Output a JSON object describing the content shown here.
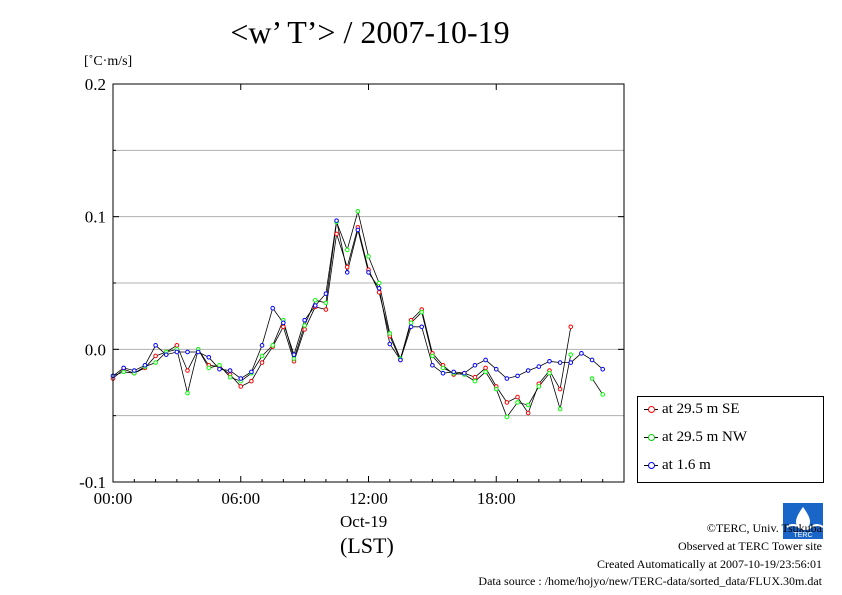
{
  "title": "<w’ T’> / 2007-10-19",
  "unit": "[˚C·m/s]",
  "legend": {
    "se": "at 29.5 m SE",
    "nw": "at 29.5 m NW",
    "low": "at 1.6 m"
  },
  "footer": {
    "copyright": "©TERC, Univ. Tsukuba",
    "observed": "Observed at TERC Tower site",
    "created": "Created Automatically at 2007-10-19/23:56:01",
    "source": "Data source : /home/hojyo/new/TERC-data/sorted_data/FLUX.30m.dat"
  },
  "logo_text": "TERC",
  "x_date_label": "Oct-19",
  "x_zone_label": "(LST)",
  "chart_data": {
    "type": "line",
    "title": "<w’ T’> / 2007-10-19",
    "ylabel": "[˚C·m/s]",
    "xlabel": "(LST)",
    "ylim": [
      -0.1,
      0.2
    ],
    "xlim_hours": [
      0,
      24
    ],
    "y_ticks": [
      "0.2",
      "0.1",
      "0.0",
      "-0.1"
    ],
    "x_ticks": [
      "00:00",
      "06:00",
      "12:00",
      "18:00"
    ],
    "grid": "horizontal",
    "legend_position": "right-bottom",
    "time_step_hours": 0.5,
    "series": [
      {
        "name": "at 29.5 m SE",
        "color": "#ff0000",
        "values": [
          -0.022,
          -0.015,
          -0.018,
          -0.014,
          -0.005,
          -0.002,
          0.003,
          -0.016,
          0.0,
          -0.012,
          -0.013,
          -0.019,
          -0.028,
          -0.024,
          -0.01,
          0.002,
          0.017,
          -0.009,
          0.015,
          0.032,
          0.03,
          0.087,
          0.062,
          0.092,
          0.06,
          0.043,
          0.01,
          -0.008,
          0.022,
          0.03,
          -0.003,
          -0.012,
          -0.019,
          -0.018,
          -0.021,
          -0.014,
          -0.028,
          -0.04,
          -0.036,
          -0.048,
          -0.026,
          -0.016,
          -0.03,
          0.017,
          null,
          null,
          null,
          null
        ]
      },
      {
        "name": "at 29.5 m NW",
        "color": "#00ff00",
        "values": [
          -0.02,
          -0.017,
          -0.018,
          -0.013,
          -0.01,
          -0.002,
          0.0,
          -0.033,
          0.0,
          -0.014,
          -0.012,
          -0.021,
          -0.024,
          -0.018,
          -0.005,
          0.003,
          0.022,
          -0.007,
          0.018,
          0.037,
          0.035,
          0.096,
          0.075,
          0.104,
          0.07,
          0.05,
          0.012,
          -0.007,
          0.02,
          0.028,
          -0.005,
          -0.014,
          -0.018,
          -0.019,
          -0.024,
          -0.017,
          -0.03,
          -0.051,
          -0.04,
          -0.042,
          -0.028,
          -0.018,
          -0.045,
          -0.004,
          null,
          -0.022,
          -0.034,
          null
        ]
      },
      {
        "name": "at 1.6 m",
        "color": "#0000ff",
        "values": [
          -0.02,
          -0.014,
          -0.016,
          -0.012,
          0.003,
          -0.004,
          -0.002,
          -0.002,
          -0.002,
          -0.006,
          -0.015,
          -0.016,
          -0.022,
          -0.017,
          0.003,
          0.031,
          0.02,
          -0.004,
          0.022,
          0.033,
          0.042,
          0.097,
          0.058,
          0.09,
          0.058,
          0.046,
          0.004,
          -0.008,
          0.017,
          0.017,
          -0.012,
          -0.018,
          -0.017,
          -0.018,
          -0.012,
          -0.008,
          -0.015,
          -0.022,
          -0.02,
          -0.016,
          -0.013,
          -0.009,
          -0.01,
          -0.01,
          -0.003,
          -0.008,
          -0.015,
          null
        ]
      }
    ]
  }
}
